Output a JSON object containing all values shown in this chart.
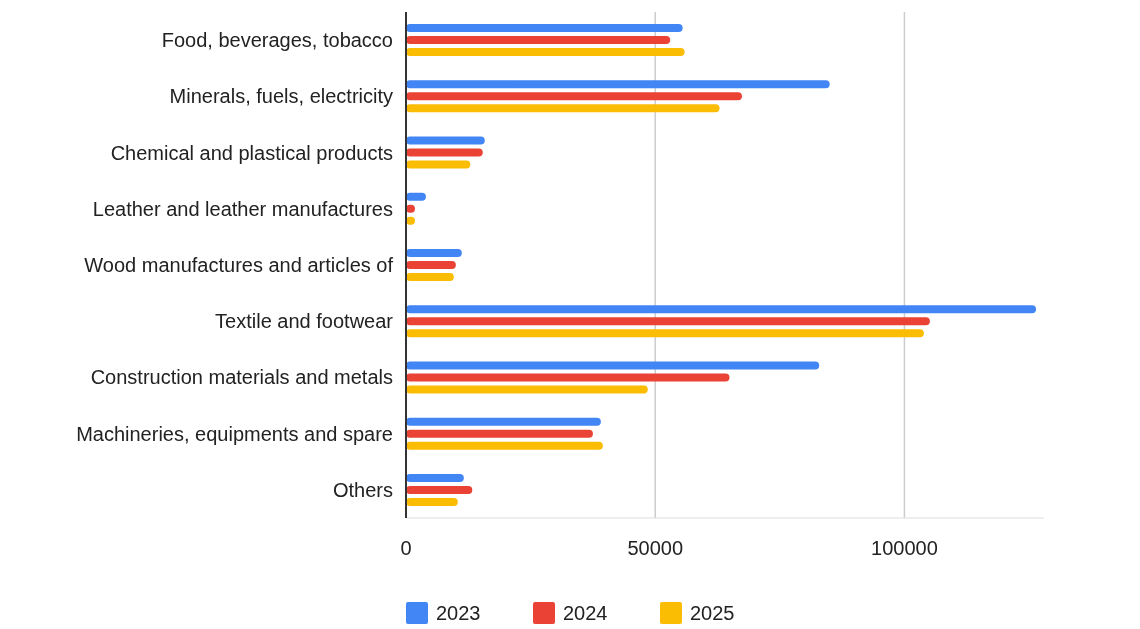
{
  "chart_data": {
    "type": "bar",
    "orientation": "horizontal",
    "categories": [
      "Food, beverages, tobacco",
      "Minerals, fuels, electricity",
      "Chemical and plastical products",
      "Leather and leather manufactures",
      "Wood manufactures and articles of",
      "Textile and footwear",
      "Construction materials and metals",
      "Machineries, equipments and spare",
      "Others"
    ],
    "series": [
      {
        "name": "2023",
        "color": "#4285f4",
        "values": [
          55500,
          85000,
          15800,
          4000,
          11200,
          126400,
          82900,
          39100,
          11600
        ]
      },
      {
        "name": "2024",
        "color": "#ea4335",
        "values": [
          53000,
          67400,
          15400,
          1800,
          10000,
          105100,
          64900,
          37500,
          13300
        ]
      },
      {
        "name": "2025",
        "color": "#fbbc04",
        "values": [
          55900,
          62900,
          12900,
          1800,
          9600,
          103900,
          48500,
          39500,
          10400
        ]
      }
    ],
    "xlim": [
      0,
      128000
    ],
    "xticks": [
      0,
      50000,
      100000
    ],
    "grid": "x",
    "legend": "bottom"
  }
}
